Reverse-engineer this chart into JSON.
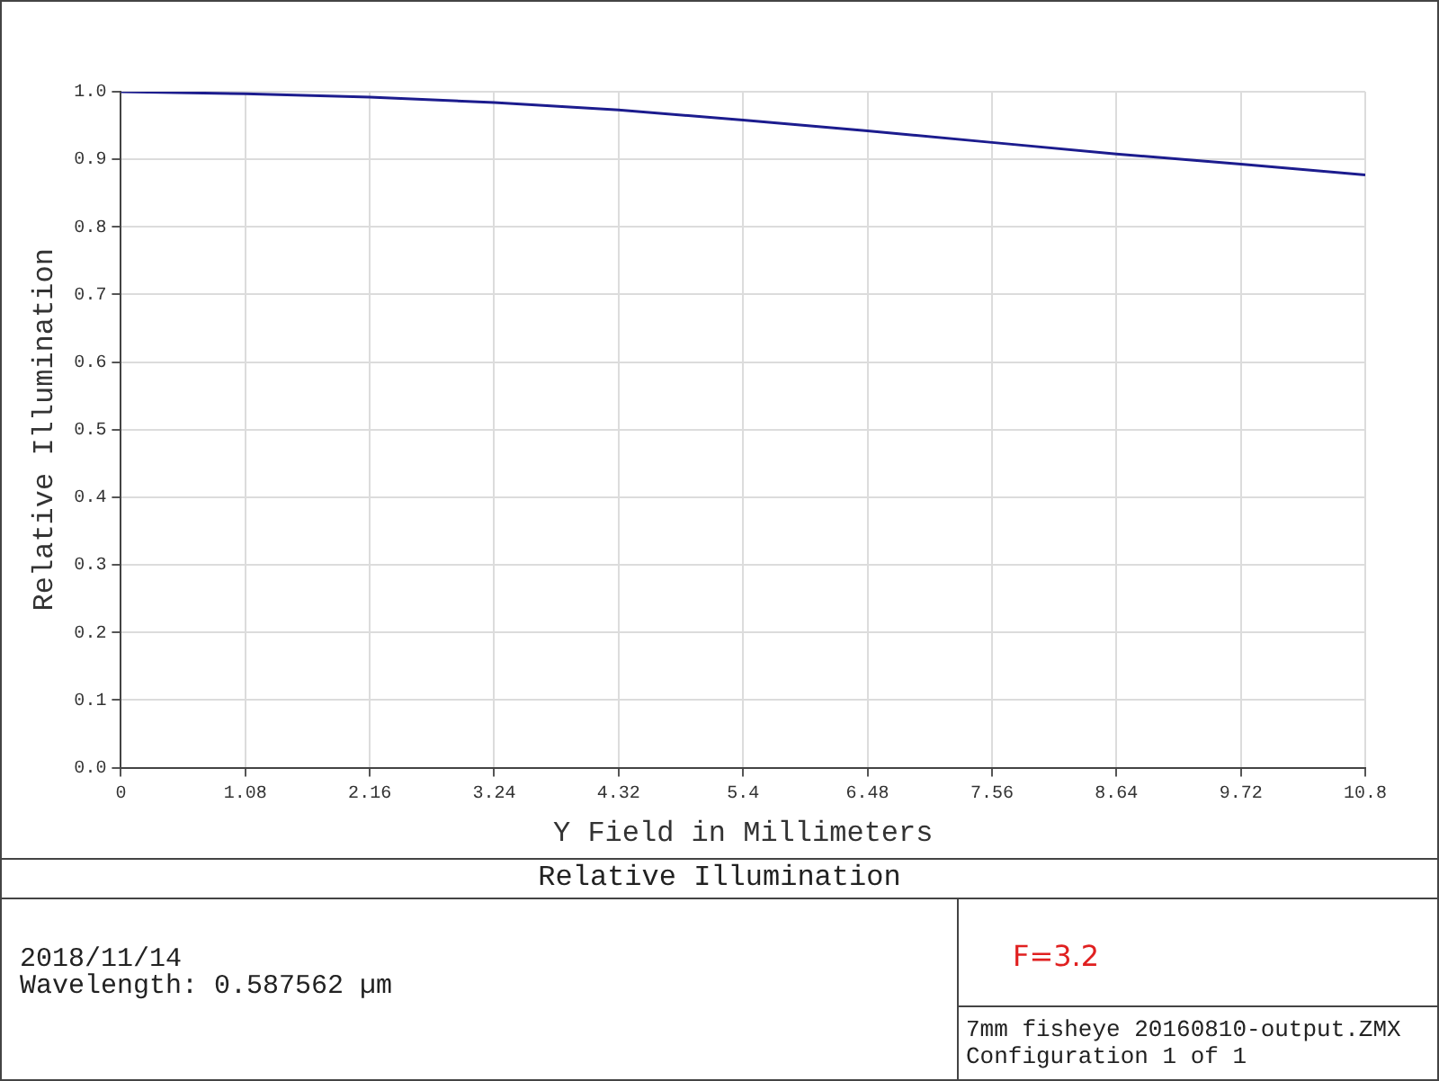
{
  "chart_data": {
    "type": "line",
    "title": "Relative Illumination",
    "xlabel": "Y Field in Millimeters",
    "ylabel": "Relative Illumination",
    "x": [
      0,
      1.08,
      2.16,
      3.24,
      4.32,
      5.4,
      6.48,
      7.56,
      8.64,
      9.72,
      10.8
    ],
    "series": [
      {
        "color": "#1c1c8e",
        "values": [
          1.0,
          0.997,
          0.992,
          0.984,
          0.973,
          0.958,
          0.942,
          0.925,
          0.908,
          0.893,
          0.877
        ]
      }
    ],
    "xlim": [
      0,
      10.8
    ],
    "xticks": [
      0,
      1.08,
      2.16,
      3.24,
      4.32,
      5.4,
      6.48,
      7.56,
      8.64,
      9.72,
      10.8
    ],
    "ylim": [
      0,
      1
    ],
    "yticks": [
      {
        "value": 0,
        "label": "0.0"
      },
      0.1,
      0.2,
      0.3,
      0.4,
      0.5,
      0.6,
      0.7,
      0.8,
      0.9,
      {
        "value": 1,
        "label": "1.0"
      }
    ],
    "grid": true,
    "legend": false,
    "marker": "none",
    "line_style": "solid",
    "annotations": [
      "2018/11/14",
      "Wavelength: 0.587562 µm",
      "F=3.2",
      "7mm fisheye 20160810-output.ZMX",
      "Configuration 1 of 1"
    ]
  }
}
